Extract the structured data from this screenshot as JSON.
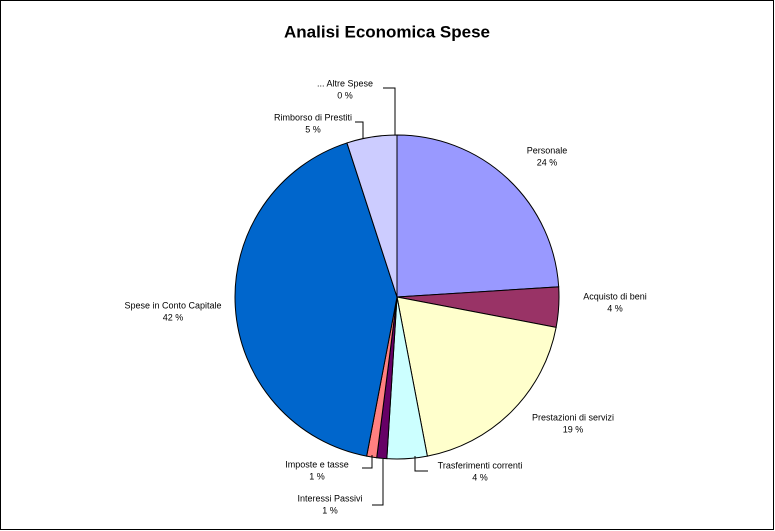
{
  "chart_data": {
    "type": "pie",
    "title": "Analisi Economica Spese",
    "categories": [
      "Personale",
      "Acquisto di beni",
      "Prestazioni di servizi",
      "Trasferimenti correnti",
      "Interessi Passivi",
      "Imposte e tasse",
      "Spese in Conto Capitale",
      "Rimborso di Prestiti",
      "... Altre Spese"
    ],
    "values": [
      24,
      4,
      19,
      4,
      1,
      1,
      42,
      5,
      0
    ],
    "value_labels": [
      "24 %",
      "4 %",
      "19 %",
      "4 %",
      "1 %",
      "1 %",
      "42 %",
      "5 %",
      "0 %"
    ],
    "colors": [
      "#9999ff",
      "#993366",
      "#ffffcc",
      "#ccffff",
      "#660066",
      "#ff8080",
      "#0066cc",
      "#ccccff",
      "#000080"
    ]
  }
}
